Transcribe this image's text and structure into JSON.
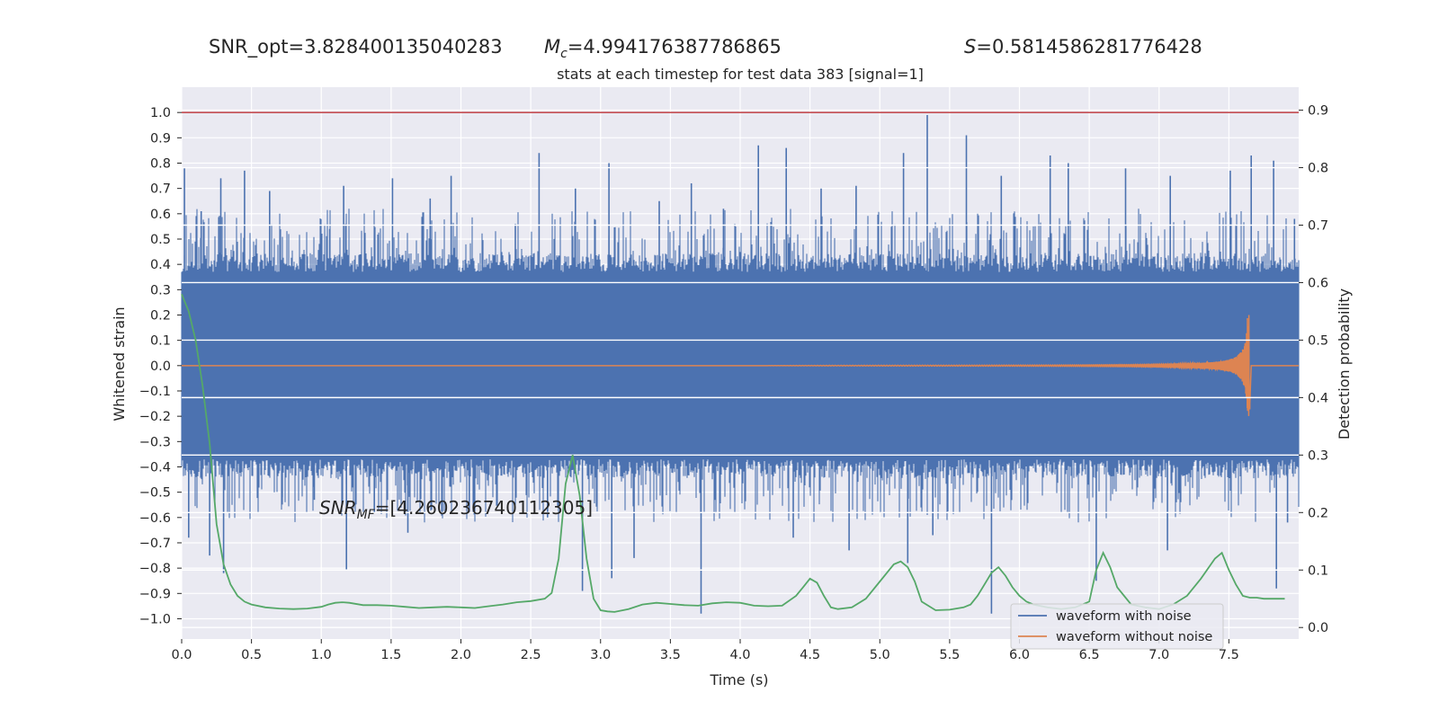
{
  "header": {
    "snr_opt": "SNR_opt=3.828400135040283",
    "mc_symbol": "M",
    "mc_sub": "c",
    "mc_value": "=4.994176387786865",
    "s_symbol": "S",
    "s_value": "=0.5814586281776428"
  },
  "annotation": {
    "snr_symbol": "SNR",
    "snr_sub": "MF",
    "snr_value": "=[4.260236740112305]"
  },
  "chart_data": {
    "type": "line",
    "title": "stats at each timestep for test data 383 [signal=1]",
    "xlabel": "Time (s)",
    "ylabel": "Whitened strain",
    "y2label": "Detection probability",
    "xlim": [
      0.0,
      8.0
    ],
    "ylim": [
      -1.08,
      1.1
    ],
    "y2lim": [
      -0.02,
      0.94
    ],
    "xticks": [
      "0.0",
      "0.5",
      "1.0",
      "1.5",
      "2.0",
      "2.5",
      "3.0",
      "3.5",
      "4.0",
      "4.5",
      "5.0",
      "5.5",
      "6.0",
      "6.5",
      "7.0",
      "7.5"
    ],
    "xtick_values": [
      0.0,
      0.5,
      1.0,
      1.5,
      2.0,
      2.5,
      3.0,
      3.5,
      4.0,
      4.5,
      5.0,
      5.5,
      6.0,
      6.5,
      7.0,
      7.5
    ],
    "yticks": [
      "1.0",
      "0.9",
      "0.8",
      "0.7",
      "0.6",
      "0.5",
      "0.4",
      "0.3",
      "0.2",
      "0.1",
      "0.0",
      "−0.1",
      "−0.2",
      "−0.3",
      "−0.4",
      "−0.5",
      "−0.6",
      "−0.7",
      "−0.8",
      "−0.9",
      "−1.0"
    ],
    "ytick_values": [
      1.0,
      0.9,
      0.8,
      0.7,
      0.6,
      0.5,
      0.4,
      0.3,
      0.2,
      0.1,
      0.0,
      -0.1,
      -0.2,
      -0.3,
      -0.4,
      -0.5,
      -0.6,
      -0.7,
      -0.8,
      -0.9,
      -1.0
    ],
    "y2ticks": [
      "0.9",
      "0.8",
      "0.7",
      "0.6",
      "0.5",
      "0.4",
      "0.3",
      "0.2",
      "0.1",
      "0.0"
    ],
    "y2tick_values": [
      0.9,
      0.8,
      0.7,
      0.6,
      0.5,
      0.4,
      0.3,
      0.2,
      0.1,
      0.0
    ],
    "threshold": 1.0,
    "grid": true,
    "legend_position": "bottom-right",
    "series": [
      {
        "name": "waveform with noise",
        "color": "#4c72b0",
        "axis": "left",
        "noise_envelope": {
          "core_min": -0.37,
          "core_max": 0.37,
          "spike_max": 1.0,
          "spike_min": -1.0,
          "spikes": [
            [
              0.02,
              0.78
            ],
            [
              0.05,
              -0.68
            ],
            [
              0.14,
              0.61
            ],
            [
              0.2,
              -0.75
            ],
            [
              0.28,
              0.74
            ],
            [
              0.3,
              -0.82
            ],
            [
              0.45,
              0.77
            ],
            [
              0.63,
              0.69
            ],
            [
              0.72,
              -0.52
            ],
            [
              0.95,
              -0.53
            ],
            [
              1.06,
              0.54
            ],
            [
              1.16,
              0.71
            ],
            [
              1.18,
              -0.81
            ],
            [
              1.38,
              -0.58
            ],
            [
              1.51,
              0.74
            ],
            [
              1.62,
              -0.66
            ],
            [
              1.78,
              0.66
            ],
            [
              1.93,
              0.75
            ],
            [
              2.06,
              -0.58
            ],
            [
              2.39,
              0.56
            ],
            [
              2.56,
              0.84
            ],
            [
              2.62,
              -0.6
            ],
            [
              2.82,
              0.7
            ],
            [
              2.87,
              -0.89
            ],
            [
              3.06,
              0.8
            ],
            [
              3.08,
              -0.84
            ],
            [
              3.24,
              -0.76
            ],
            [
              3.42,
              0.65
            ],
            [
              3.65,
              0.72
            ],
            [
              3.72,
              -0.98
            ],
            [
              3.88,
              0.62
            ],
            [
              4.13,
              0.87
            ],
            [
              4.33,
              0.86
            ],
            [
              4.38,
              -0.68
            ],
            [
              4.58,
              0.7
            ],
            [
              4.83,
              0.71
            ],
            [
              4.78,
              -0.73
            ],
            [
              5.17,
              0.84
            ],
            [
              5.2,
              -0.78
            ],
            [
              5.34,
              0.99
            ],
            [
              5.38,
              -0.67
            ],
            [
              5.62,
              0.91
            ],
            [
              5.8,
              -0.98
            ],
            [
              5.87,
              0.75
            ],
            [
              6.22,
              0.83
            ],
            [
              6.35,
              0.8
            ],
            [
              6.55,
              -0.85
            ],
            [
              6.76,
              0.78
            ],
            [
              7.08,
              0.75
            ],
            [
              7.06,
              -0.73
            ],
            [
              7.51,
              0.77
            ],
            [
              7.66,
              0.83
            ],
            [
              7.82,
              0.81
            ],
            [
              7.84,
              -0.88
            ],
            [
              7.97,
              0.58
            ],
            [
              7.92,
              -0.62
            ]
          ]
        }
      },
      {
        "name": "waveform without noise",
        "color": "#dd8452",
        "axis": "left",
        "chirp": {
          "start": 4.2,
          "merger": 7.65,
          "peak_amplitude": 0.21,
          "peak_min": -0.15
        }
      },
      {
        "name": "",
        "color": "#55a868",
        "axis": "right",
        "x": [
          0.0,
          0.05,
          0.1,
          0.15,
          0.2,
          0.25,
          0.3,
          0.35,
          0.4,
          0.45,
          0.5,
          0.6,
          0.7,
          0.8,
          0.9,
          1.0,
          1.05,
          1.1,
          1.15,
          1.2,
          1.3,
          1.4,
          1.5,
          1.6,
          1.7,
          1.8,
          1.9,
          2.0,
          2.1,
          2.2,
          2.3,
          2.4,
          2.5,
          2.6,
          2.65,
          2.7,
          2.75,
          2.8,
          2.85,
          2.9,
          2.95,
          3.0,
          3.05,
          3.1,
          3.2,
          3.3,
          3.4,
          3.5,
          3.6,
          3.7,
          3.8,
          3.9,
          4.0,
          4.1,
          4.2,
          4.3,
          4.4,
          4.45,
          4.5,
          4.55,
          4.6,
          4.65,
          4.7,
          4.8,
          4.9,
          5.0,
          5.1,
          5.15,
          5.2,
          5.25,
          5.3,
          5.4,
          5.5,
          5.6,
          5.65,
          5.7,
          5.75,
          5.8,
          5.85,
          5.9,
          5.95,
          6.0,
          6.05,
          6.1,
          6.2,
          6.3,
          6.4,
          6.5,
          6.55,
          6.6,
          6.65,
          6.7,
          6.75,
          6.8,
          6.9,
          7.0,
          7.1,
          7.2,
          7.3,
          7.4,
          7.45,
          7.5,
          7.55,
          7.6,
          7.65,
          7.7,
          7.75,
          7.8,
          7.9
        ],
        "values": [
          0.58,
          0.55,
          0.5,
          0.42,
          0.32,
          0.18,
          0.11,
          0.075,
          0.055,
          0.045,
          0.04,
          0.035,
          0.033,
          0.032,
          0.033,
          0.036,
          0.04,
          0.043,
          0.044,
          0.043,
          0.039,
          0.039,
          0.038,
          0.036,
          0.034,
          0.035,
          0.036,
          0.035,
          0.034,
          0.037,
          0.04,
          0.044,
          0.046,
          0.05,
          0.06,
          0.12,
          0.25,
          0.3,
          0.23,
          0.12,
          0.05,
          0.03,
          0.028,
          0.027,
          0.032,
          0.04,
          0.043,
          0.041,
          0.039,
          0.038,
          0.042,
          0.044,
          0.043,
          0.038,
          0.037,
          0.038,
          0.055,
          0.07,
          0.085,
          0.078,
          0.055,
          0.035,
          0.032,
          0.035,
          0.05,
          0.08,
          0.11,
          0.115,
          0.105,
          0.08,
          0.045,
          0.03,
          0.031,
          0.035,
          0.04,
          0.055,
          0.075,
          0.095,
          0.105,
          0.09,
          0.07,
          0.055,
          0.045,
          0.04,
          0.035,
          0.032,
          0.035,
          0.045,
          0.1,
          0.13,
          0.105,
          0.07,
          0.055,
          0.04,
          0.035,
          0.032,
          0.04,
          0.055,
          0.085,
          0.12,
          0.13,
          0.1,
          0.075,
          0.055,
          0.052,
          0.052,
          0.05,
          0.05,
          0.05
        ]
      }
    ]
  }
}
